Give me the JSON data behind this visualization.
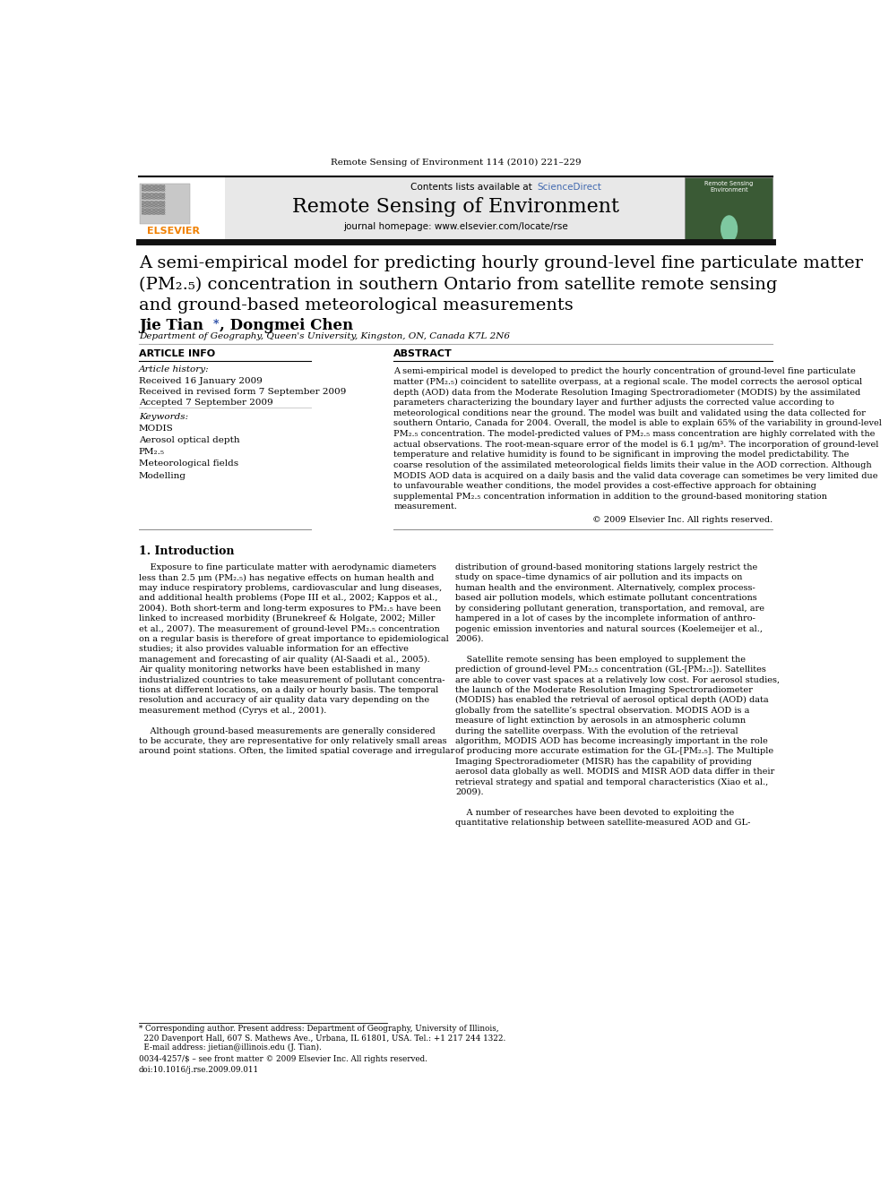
{
  "page_width": 9.92,
  "page_height": 13.23,
  "background_color": "#ffffff",
  "journal_citation": "Remote Sensing of Environment 114 (2010) 221–229",
  "header_bg_color": "#e8e8e8",
  "contents_text": "Contents lists available at",
  "sciencedirect_text": "ScienceDirect",
  "sciencedirect_color": "#4169b0",
  "journal_title": "Remote Sensing of Environment",
  "journal_homepage": "journal homepage: www.elsevier.com/locate/rse",
  "article_title_line1": "A semi-empirical model for predicting hourly ground-level fine particulate matter",
  "article_title_line2": "(PM₂.₅) concentration in southern Ontario from satellite remote sensing",
  "article_title_line3": "and ground-based meteorological measurements",
  "affiliation": "Department of Geography, Queen's University, Kingston, ON, Canada K7L 2N6",
  "article_info_header": "ARTICLE INFO",
  "article_history_label": "Article history:",
  "received_1": "Received 16 January 2009",
  "received_2": "Received in revised form 7 September 2009",
  "accepted": "Accepted 7 September 2009",
  "keywords_label": "Keywords:",
  "keywords": [
    "MODIS",
    "Aerosol optical depth",
    "PM₂.₅",
    "Meteorological fields",
    "Modelling"
  ],
  "abstract_header": "ABSTRACT",
  "abstract_lines": [
    "A semi-empirical model is developed to predict the hourly concentration of ground-level fine particulate",
    "matter (PM₂.₅) coincident to satellite overpass, at a regional scale. The model corrects the aerosol optical",
    "depth (AOD) data from the Moderate Resolution Imaging Spectroradiometer (MODIS) by the assimilated",
    "parameters characterizing the boundary layer and further adjusts the corrected value according to",
    "meteorological conditions near the ground. The model was built and validated using the data collected for",
    "southern Ontario, Canada for 2004. Overall, the model is able to explain 65% of the variability in ground-level",
    "PM₂.₅ concentration. The model-predicted values of PM₂.₅ mass concentration are highly correlated with the",
    "actual observations. The root-mean-square error of the model is 6.1 μg/m³. The incorporation of ground-level",
    "temperature and relative humidity is found to be significant in improving the model predictability. The",
    "coarse resolution of the assimilated meteorological fields limits their value in the AOD correction. Although",
    "MODIS AOD data is acquired on a daily basis and the valid data coverage can sometimes be very limited due",
    "to unfavourable weather conditions, the model provides a cost-effective approach for obtaining",
    "supplemental PM₂.₅ concentration information in addition to the ground-based monitoring station",
    "measurement."
  ],
  "copyright": "© 2009 Elsevier Inc. All rights reserved.",
  "section1_title": "1. Introduction",
  "intro_left_lines": [
    "    Exposure to fine particulate matter with aerodynamic diameters",
    "less than 2.5 μm (PM₂.₅) has negative effects on human health and",
    "may induce respiratory problems, cardiovascular and lung diseases,",
    "and additional health problems (Pope III et al., 2002; Kappos et al.,",
    "2004). Both short-term and long-term exposures to PM₂.₅ have been",
    "linked to increased morbidity (Brunekreef & Holgate, 2002; Miller",
    "et al., 2007). The measurement of ground-level PM₂.₅ concentration",
    "on a regular basis is therefore of great importance to epidemiological",
    "studies; it also provides valuable information for an effective",
    "management and forecasting of air quality (Al-Saadi et al., 2005).",
    "Air quality monitoring networks have been established in many",
    "industrialized countries to take measurement of pollutant concentra-",
    "tions at different locations, on a daily or hourly basis. The temporal",
    "resolution and accuracy of air quality data vary depending on the",
    "measurement method (Cyrys et al., 2001).",
    "",
    "    Although ground-based measurements are generally considered",
    "to be accurate, they are representative for only relatively small areas",
    "around point stations. Often, the limited spatial coverage and irregular"
  ],
  "intro_right_lines": [
    "distribution of ground-based monitoring stations largely restrict the",
    "study on space–time dynamics of air pollution and its impacts on",
    "human health and the environment. Alternatively, complex process-",
    "based air pollution models, which estimate pollutant concentrations",
    "by considering pollutant generation, transportation, and removal, are",
    "hampered in a lot of cases by the incomplete information of anthro-",
    "pogenic emission inventories and natural sources (Koelemeijer et al.,",
    "2006).",
    "",
    "    Satellite remote sensing has been employed to supplement the",
    "prediction of ground-level PM₂.₅ concentration (GL-[PM₂.₅]). Satellites",
    "are able to cover vast spaces at a relatively low cost. For aerosol studies,",
    "the launch of the Moderate Resolution Imaging Spectroradiometer",
    "(MODIS) has enabled the retrieval of aerosol optical depth (AOD) data",
    "globally from the satellite’s spectral observation. MODIS AOD is a",
    "measure of light extinction by aerosols in an atmospheric column",
    "during the satellite overpass. With the evolution of the retrieval",
    "algorithm, MODIS AOD has become increasingly important in the role",
    "of producing more accurate estimation for the GL-[PM₂.₅]. The Multiple",
    "Imaging Spectroradiometer (MISR) has the capability of providing",
    "aerosol data globally as well. MODIS and MISR AOD data differ in their",
    "retrieval strategy and spatial and temporal characteristics (Xiao et al.,",
    "2009).",
    "",
    "    A number of researches have been devoted to exploiting the",
    "quantitative relationship between satellite-measured AOD and GL-"
  ],
  "footnote_line1": "* Corresponding author. Present address: Department of Geography, University of Illinois,",
  "footnote_line2": "  220 Davenport Hall, 607 S. Mathews Ave., Urbana, IL 61801, USA. Tel.: +1 217 244 1322.",
  "footnote_line3": "  E-mail address: jietian@illinois.edu (J. Tian).",
  "footer_issn": "0034-4257/$ – see front matter © 2009 Elsevier Inc. All rights reserved.",
  "footer_doi": "doi:10.1016/j.rse.2009.09.011",
  "elsevier_color": "#f08000",
  "dark_bar_color": "#111111"
}
